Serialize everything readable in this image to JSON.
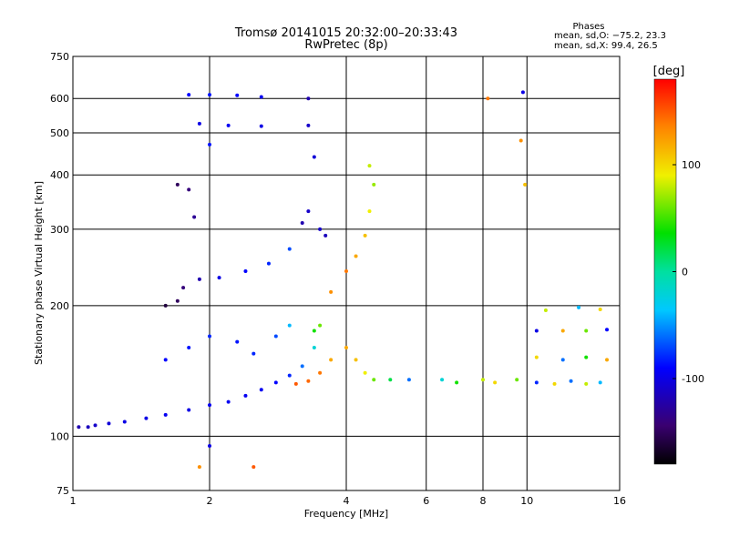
{
  "chart_data": {
    "type": "scatter",
    "title": "Tromsø 20141015 20:32:00–20:33:43",
    "subtitle": "RwPretec (8p)",
    "xlabel": "Frequency [MHz]",
    "ylabel": "Stationary phase Virtual Height [km]",
    "x_scale": "log",
    "y_scale": "log",
    "xlim": [
      1,
      16
    ],
    "ylim": [
      75,
      750
    ],
    "x_ticks": [
      1,
      2,
      4,
      6,
      8,
      10,
      16
    ],
    "y_ticks": [
      75,
      100,
      200,
      300,
      400,
      500,
      600,
      750
    ],
    "grid": true,
    "stats": {
      "heading": "Phases",
      "line_o": "mean, sd,O: −75.2, 23.3",
      "line_x": "mean, sd,X:  99.4, 26.5"
    },
    "colorbar": {
      "label": "[deg]",
      "range": [
        -180,
        180
      ],
      "ticks": [
        100,
        0,
        -100
      ],
      "colormap": "rainbow"
    },
    "series": [
      {
        "points": [
          [
            1.03,
            105,
            -120
          ],
          [
            1.08,
            105,
            -115
          ],
          [
            1.12,
            106,
            -110
          ],
          [
            1.2,
            107,
            -105
          ],
          [
            1.3,
            108,
            -100
          ],
          [
            1.45,
            110,
            -100
          ],
          [
            1.6,
            112,
            -95
          ],
          [
            1.8,
            115,
            -100
          ],
          [
            2.0,
            118,
            -95
          ],
          [
            2.2,
            120,
            -95
          ],
          [
            2.4,
            124,
            -95
          ],
          [
            2.6,
            128,
            -95
          ],
          [
            2.8,
            133,
            -90
          ],
          [
            3.0,
            138,
            -80
          ],
          [
            3.2,
            145,
            -60
          ],
          [
            3.4,
            160,
            -20
          ],
          [
            3.5,
            180,
            60
          ],
          [
            3.7,
            215,
            130
          ],
          [
            4.0,
            240,
            140
          ],
          [
            4.2,
            260,
            120
          ],
          [
            4.4,
            290,
            110
          ],
          [
            4.5,
            330,
            90
          ],
          [
            4.6,
            380,
            70
          ],
          [
            4.5,
            420,
            80
          ],
          [
            3.1,
            132,
            150
          ],
          [
            3.3,
            134,
            145
          ],
          [
            3.5,
            140,
            140
          ],
          [
            3.7,
            150,
            120
          ],
          [
            1.8,
            612,
            -90
          ],
          [
            2.0,
            612,
            -85
          ],
          [
            2.3,
            610,
            -90
          ],
          [
            2.6,
            605,
            -95
          ],
          [
            1.9,
            525,
            -100
          ],
          [
            2.2,
            520,
            -95
          ],
          [
            2.6,
            518,
            -100
          ],
          [
            2.0,
            470,
            -85
          ],
          [
            1.7,
            380,
            -150
          ],
          [
            1.8,
            370,
            -140
          ],
          [
            1.85,
            320,
            -130
          ],
          [
            1.6,
            200,
            -160
          ],
          [
            1.7,
            205,
            -150
          ],
          [
            1.75,
            220,
            -140
          ],
          [
            1.9,
            230,
            -120
          ],
          [
            2.1,
            232,
            -100
          ],
          [
            2.4,
            240,
            -90
          ],
          [
            2.7,
            250,
            -80
          ],
          [
            3.0,
            270,
            -70
          ],
          [
            3.3,
            600,
            -120
          ],
          [
            3.3,
            520,
            -110
          ],
          [
            3.4,
            440,
            -105
          ],
          [
            3.3,
            330,
            -110
          ],
          [
            3.5,
            300,
            -110
          ],
          [
            3.6,
            290,
            -115
          ],
          [
            3.2,
            310,
            -120
          ],
          [
            1.6,
            150,
            -90
          ],
          [
            1.8,
            160,
            -85
          ],
          [
            2.0,
            170,
            -80
          ],
          [
            2.3,
            165,
            -85
          ],
          [
            2.5,
            155,
            -80
          ],
          [
            2.8,
            170,
            -70
          ],
          [
            3.0,
            180,
            -40
          ],
          [
            3.4,
            175,
            40
          ],
          [
            4.0,
            160,
            120
          ],
          [
            4.2,
            150,
            110
          ],
          [
            4.4,
            140,
            90
          ],
          [
            4.6,
            135,
            60
          ],
          [
            5.0,
            135,
            20
          ],
          [
            5.5,
            135,
            -60
          ],
          [
            6.5,
            135,
            -20
          ],
          [
            7.0,
            133,
            40
          ],
          [
            8.0,
            135,
            80
          ],
          [
            8.5,
            133,
            100
          ],
          [
            9.5,
            135,
            60
          ],
          [
            10.5,
            133,
            -80
          ],
          [
            11.5,
            132,
            100
          ],
          [
            12.5,
            134,
            -60
          ],
          [
            13.5,
            132,
            80
          ],
          [
            14.5,
            133,
            -40
          ],
          [
            10.5,
            175,
            -100
          ],
          [
            12.0,
            175,
            120
          ],
          [
            13.5,
            175,
            60
          ],
          [
            15.0,
            176,
            -90
          ],
          [
            10.5,
            152,
            100
          ],
          [
            12.0,
            150,
            -60
          ],
          [
            13.5,
            152,
            40
          ],
          [
            15.0,
            150,
            120
          ],
          [
            11.0,
            195,
            80
          ],
          [
            13.0,
            198,
            -40
          ],
          [
            14.5,
            196,
            100
          ],
          [
            9.8,
            620,
            -100
          ],
          [
            9.7,
            480,
            130
          ],
          [
            9.9,
            380,
            110
          ],
          [
            8.2,
            600,
            140
          ],
          [
            2.0,
            95,
            -100
          ],
          [
            2.5,
            85,
            150
          ],
          [
            1.9,
            85,
            130
          ]
        ]
      }
    ]
  }
}
